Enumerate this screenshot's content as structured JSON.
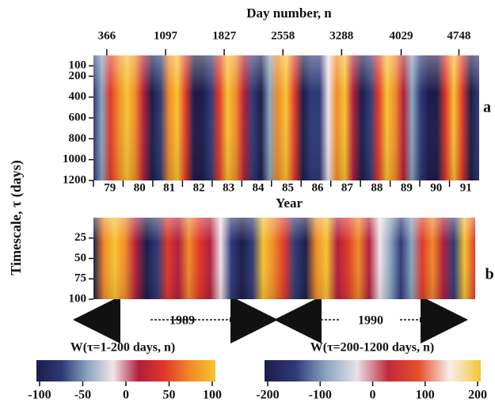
{
  "chart_data": [
    {
      "type": "heatmap",
      "title": "Day number, n",
      "x2lim": [
        200,
        5000
      ],
      "x2ticks": [
        366,
        1097,
        1827,
        2558,
        3288,
        4029,
        4748
      ],
      "xlabel": "Year",
      "categories": [
        "79",
        "80",
        "81",
        "82",
        "83",
        "84",
        "85",
        "86",
        "87",
        "88",
        "89",
        "90",
        "91"
      ],
      "ylim": [
        0,
        1200
      ],
      "yticks": [
        100,
        200,
        400,
        600,
        800,
        1000,
        1200
      ],
      "panel_label": "a",
      "ylabel": "Timescale, τ  (days)"
    },
    {
      "type": "heatmap",
      "ylim": [
        0,
        100
      ],
      "yticks": [
        25,
        50,
        75,
        100
      ],
      "panel_label": "b",
      "arrows": [
        "1989",
        "1990"
      ]
    },
    {
      "type": "colorbar",
      "title": "W(τ=1-200 days, n)",
      "xlim": [
        -100,
        100
      ],
      "xticks": [
        -100,
        -50,
        0,
        50,
        100
      ],
      "colors": [
        "#1c1c4a",
        "#2e3a78",
        "#8aa6c0",
        "#f2e4e8",
        "#b01e3c",
        "#e0382a",
        "#f08a28",
        "#f6c432"
      ]
    },
    {
      "type": "colorbar",
      "title": "W(τ=200-1200 days, n)",
      "xlim": [
        -200,
        200
      ],
      "xticks": [
        -200,
        -100,
        0,
        100,
        200
      ],
      "colors": [
        "#1c1c4a",
        "#2e3a78",
        "#8aa6c0",
        "#e8e0ea",
        "#c02a3a",
        "#e8502a",
        "#f6f0f0",
        "#f6c432"
      ]
    }
  ]
}
